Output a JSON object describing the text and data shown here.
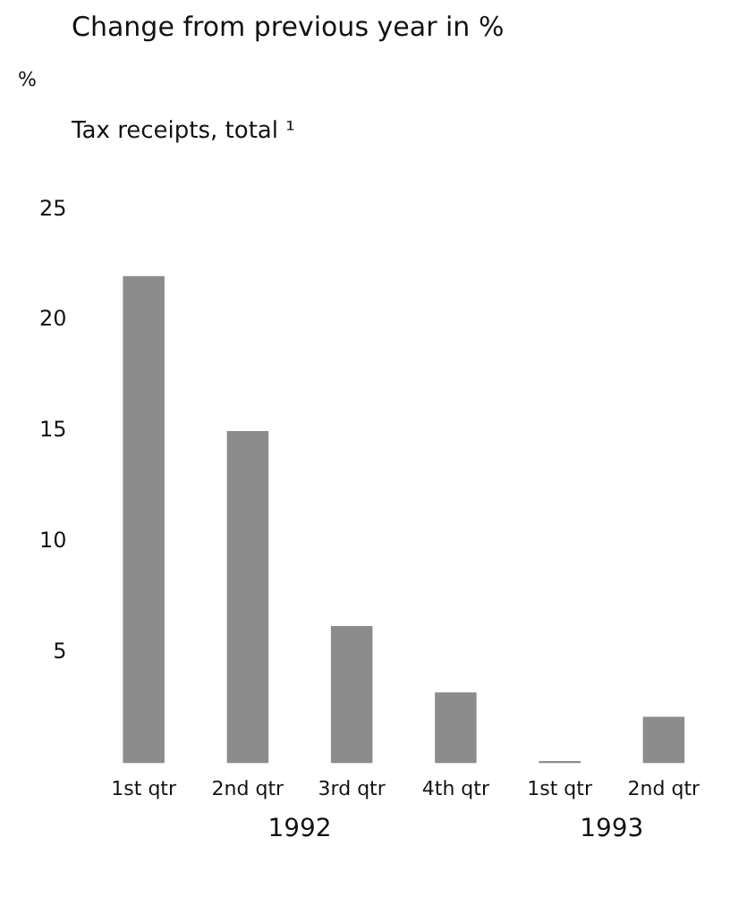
{
  "chart_data": {
    "type": "bar",
    "title": "Change from previous year in %",
    "subtitle": "Tax receipts, total ¹",
    "categories": [
      "1st qtr",
      "2nd qtr",
      "3rd qtr",
      "4th qtr",
      "1st qtr",
      "2nd qtr"
    ],
    "values": [
      22,
      15,
      6.2,
      3.2,
      0.1,
      2.1
    ],
    "color": "#8c8c8c",
    "ylim": [
      0,
      25
    ],
    "yticks": [
      5,
      10,
      15,
      20,
      25
    ],
    "grid": false,
    "annotations": [
      "%",
      "1992",
      "1993"
    ],
    "legend": false
  }
}
